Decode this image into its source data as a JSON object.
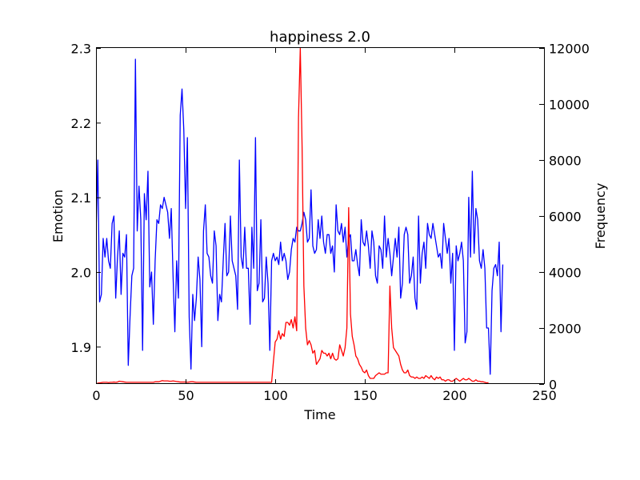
{
  "chart_data": {
    "type": "line",
    "title": "happiness 2.0",
    "xlabel": "Time",
    "ylabel_left": "Emotion",
    "ylabel_right": "Frequency",
    "xlim": [
      0,
      250
    ],
    "ylim_left": [
      1.85,
      2.3
    ],
    "ylim_right": [
      0,
      12000
    ],
    "xticks": [
      "0",
      "50",
      "100",
      "150",
      "200",
      "250"
    ],
    "yticks_left": [
      "1.9",
      "2.0",
      "2.1",
      "2.2",
      "2.3"
    ],
    "yticks_right": [
      "0",
      "2000",
      "4000",
      "6000",
      "8000",
      "10000",
      "12000"
    ],
    "grid": false,
    "series": [
      {
        "axis": "left",
        "color": "#0000ff",
        "values": [
          2.05,
          2.15,
          1.96,
          1.97,
          2.045,
          2.02,
          2.045,
          2.015,
          2.005,
          2.065,
          2.075,
          1.965,
          2.02,
          2.055,
          1.97,
          2.025,
          2.02,
          2.05,
          1.875,
          1.94,
          1.995,
          2.005,
          2.285,
          2.055,
          2.115,
          2.07,
          1.895,
          2.105,
          2.07,
          2.135,
          1.98,
          2.0,
          1.93,
          2.015,
          2.07,
          2.065,
          2.09,
          2.085,
          2.1,
          2.09,
          2.08,
          2.045,
          2.085,
          1.995,
          1.92,
          2.015,
          1.965,
          2.21,
          2.245,
          2.19,
          2.085,
          2.18,
          1.94,
          1.87,
          1.97,
          1.935,
          1.965,
          2.02,
          1.99,
          1.9,
          2.055,
          2.09,
          2.025,
          2.02,
          1.995,
          1.985,
          2.055,
          2.035,
          1.935,
          1.97,
          1.96,
          2.015,
          2.065,
          1.995,
          2.0,
          2.075,
          2.015,
          2.005,
          1.995,
          1.95,
          2.15,
          2.02,
          2.005,
          2.06,
          2.005,
          2.005,
          1.93,
          2.06,
          2.005,
          2.18,
          1.975,
          1.985,
          2.07,
          1.96,
          1.965,
          2.02,
          1.985,
          1.895,
          2.015,
          2.025,
          2.015,
          2.02,
          2.01,
          2.04,
          2.015,
          2.025,
          2.015,
          1.99,
          2.0,
          2.03,
          2.045,
          2.04,
          2.06,
          2.055,
          2.055,
          2.065,
          2.08,
          2.07,
          2.04,
          2.045,
          2.11,
          2.035,
          2.025,
          2.03,
          2.07,
          2.045,
          2.075,
          2.04,
          2.025,
          2.05,
          2.05,
          2.025,
          2.035,
          2.0,
          2.09,
          2.055,
          2.05,
          2.065,
          2.04,
          2.06,
          2.02,
          2.045,
          2.05,
          2.015,
          2.015,
          2.03,
          2.01,
          1.995,
          2.07,
          2.04,
          2.035,
          2.055,
          2.035,
          2.005,
          2.055,
          2.04,
          1.995,
          1.985,
          2.035,
          2.03,
          2.005,
          2.075,
          2.02,
          2.045,
          2.025,
          1.995,
          2.02,
          2.045,
          2.02,
          2.06,
          1.965,
          1.985,
          2.05,
          2.06,
          2.05,
          1.985,
          1.995,
          2.02,
          1.965,
          1.95,
          2.075,
          1.985,
          2.025,
          2.04,
          2.005,
          2.065,
          2.05,
          2.045,
          2.065,
          2.05,
          2.035,
          2.02,
          2.025,
          2.005,
          2.065,
          2.045,
          2.025,
          2.045,
          1.985,
          2.025,
          1.895,
          2.035,
          2.015,
          2.025,
          2.04,
          2.015,
          1.905,
          1.92,
          2.1,
          2.02,
          2.135,
          2.025,
          2.085,
          2.07,
          2.015,
          2.005,
          2.03,
          2.005,
          1.925,
          1.925,
          1.863,
          1.975,
          2.005,
          2.01,
          1.995,
          2.04,
          1.92,
          2.01
        ]
      },
      {
        "axis": "right",
        "color": "#ff0000",
        "values": [
          0,
          30,
          40,
          50,
          60,
          60,
          60,
          50,
          60,
          60,
          70,
          60,
          70,
          100,
          90,
          80,
          70,
          60,
          60,
          60,
          60,
          60,
          60,
          60,
          60,
          60,
          60,
          60,
          60,
          60,
          60,
          60,
          60,
          80,
          80,
          80,
          100,
          120,
          110,
          110,
          110,
          100,
          100,
          110,
          100,
          90,
          80,
          70,
          70,
          70,
          70,
          60,
          70,
          80,
          80,
          70,
          60,
          60,
          60,
          60,
          60,
          60,
          60,
          60,
          60,
          60,
          60,
          60,
          60,
          60,
          60,
          60,
          60,
          60,
          60,
          60,
          60,
          60,
          60,
          60,
          60,
          60,
          60,
          60,
          60,
          60,
          60,
          60,
          60,
          60,
          60,
          60,
          60,
          60,
          60,
          60,
          60,
          60,
          60,
          800,
          1500,
          1600,
          1900,
          1600,
          1800,
          1700,
          2200,
          2200,
          2100,
          2300,
          2000,
          2400,
          1900,
          9500,
          12000,
          8500,
          3500,
          2000,
          1400,
          1550,
          1400,
          1100,
          1200,
          700,
          800,
          900,
          1200,
          1100,
          1100,
          1000,
          1100,
          900,
          1100,
          900,
          850,
          900,
          1400,
          1200,
          1000,
          1300,
          2000,
          6300,
          2500,
          1700,
          1400,
          1000,
          900,
          700,
          600,
          450,
          400,
          500,
          300,
          200,
          200,
          200,
          300,
          350,
          400,
          350,
          350,
          350,
          400,
          400,
          3500,
          2000,
          1300,
          1200,
          1100,
          1000,
          700,
          500,
          400,
          400,
          500,
          300,
          250,
          250,
          200,
          250,
          200,
          200,
          250,
          200,
          300,
          250,
          200,
          300,
          200,
          150,
          250,
          200,
          250,
          150,
          150,
          100,
          150,
          150,
          100,
          100,
          150,
          200,
          150,
          100,
          150,
          200,
          150,
          150,
          200,
          150,
          100,
          100,
          150,
          100,
          100,
          80,
          80,
          60,
          40,
          50
        ]
      }
    ]
  }
}
